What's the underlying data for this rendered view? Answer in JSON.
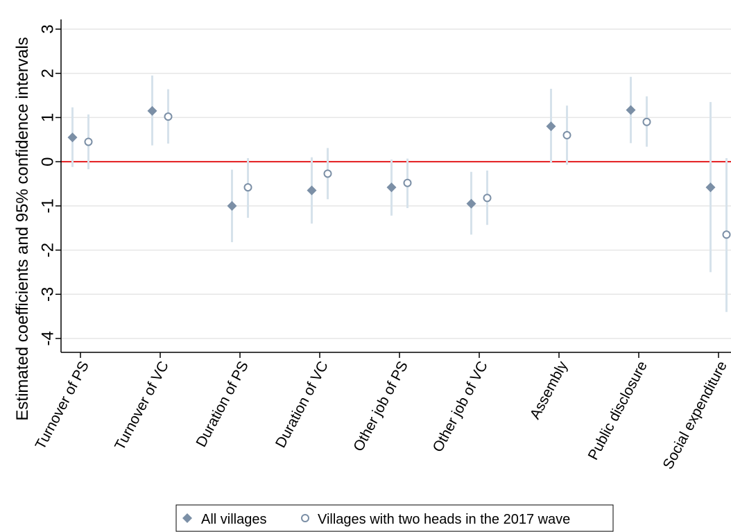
{
  "chart_data": {
    "type": "scatter",
    "ylabel": "Estimated coefficients and 95% confidence intervals",
    "xlabel": "",
    "ylim": [
      -4,
      3
    ],
    "yticks": [
      3,
      2,
      1,
      0,
      -1,
      -2,
      -3,
      -4
    ],
    "ytick_labels": [
      "3",
      "2",
      "1",
      "0",
      "-1",
      "-2",
      "-3",
      "-4"
    ],
    "grid": true,
    "reference_line": {
      "y": 0,
      "color": "#e31a1c"
    },
    "categories": [
      "Turnover of PS",
      "Turnover of VC",
      "Duration of PS",
      "Duration of VC",
      "Other job of PS",
      "Other job of VC",
      "Assembly",
      "Public disclosure",
      "Social expenditure"
    ],
    "series": [
      {
        "name": "All villages",
        "marker": "diamond",
        "color": "#7b8fa6",
        "values": [
          0.55,
          1.15,
          -1.0,
          -0.65,
          -0.58,
          -0.95,
          0.8,
          1.17,
          -0.58
        ],
        "ci_low": [
          -0.12,
          0.37,
          -1.82,
          -1.4,
          -1.22,
          -1.65,
          -0.03,
          0.42,
          -2.5
        ],
        "ci_high": [
          1.23,
          1.95,
          -0.18,
          0.1,
          0.05,
          -0.23,
          1.65,
          1.92,
          1.35
        ]
      },
      {
        "name": "Villages with two heads in the 2017 wave",
        "marker": "circle",
        "color": "#7b8fa6",
        "values": [
          0.45,
          1.02,
          -0.58,
          -0.27,
          -0.48,
          -0.82,
          0.6,
          0.9,
          -1.65
        ],
        "ci_low": [
          -0.17,
          0.41,
          -1.27,
          -0.85,
          -1.05,
          -1.43,
          -0.07,
          0.34,
          -3.4
        ],
        "ci_high": [
          1.07,
          1.64,
          0.08,
          0.31,
          0.07,
          -0.2,
          1.27,
          1.48,
          0.08
        ]
      }
    ],
    "ci_color": "#d6e2eb",
    "legend_position": "bottom"
  },
  "legend": {
    "items": [
      {
        "label": "All villages"
      },
      {
        "label": "Villages with two heads in the 2017 wave"
      }
    ]
  }
}
